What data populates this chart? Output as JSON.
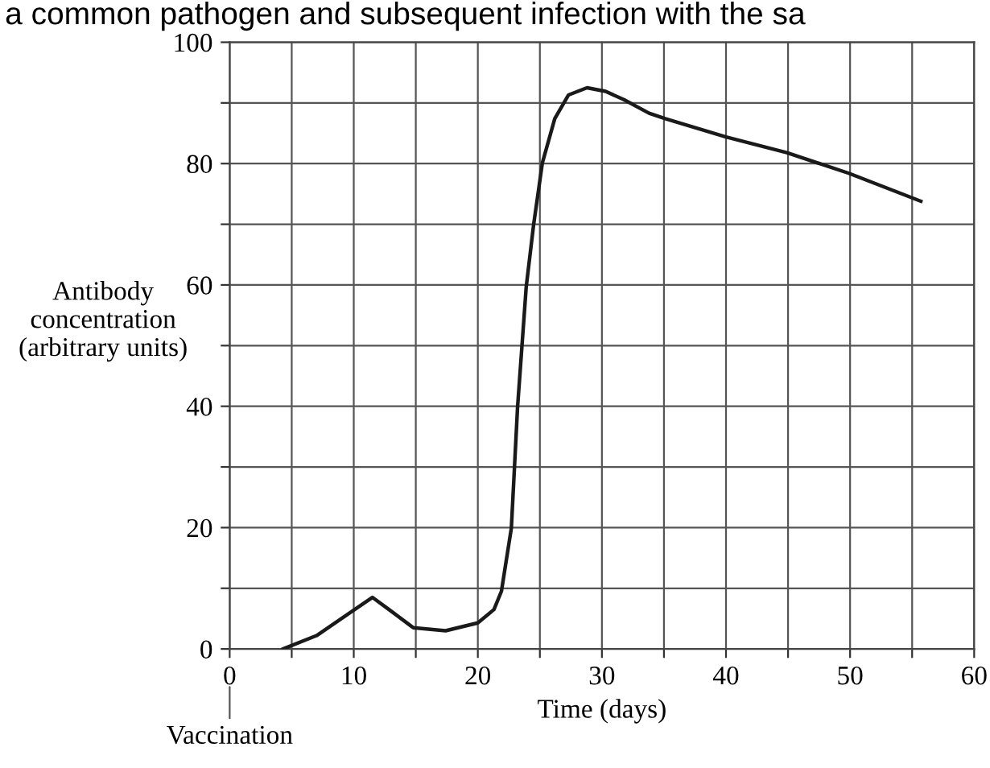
{
  "chart_data": {
    "type": "line",
    "title": "a common pathogen and subsequent infection with the sa",
    "xlabel": "Time (days)",
    "ylabel": "Antibody\nconcentration\n(arbitrary units)",
    "series": [
      {
        "color": "#1a1a1a",
        "x": [
          4.3,
          7.0,
          11.5,
          13.1,
          14.8,
          17.4,
          20.0,
          21.3,
          21.9,
          22.7,
          23.2,
          23.9,
          24.5,
          25.2,
          26.2,
          27.3,
          28.8,
          30.3,
          31.8,
          33.8,
          35.1,
          40,
          44.9,
          49.9,
          55.7
        ],
        "values": [
          0,
          2.2,
          8.5,
          6.1,
          3.5,
          3.0,
          4.3,
          6.5,
          9.5,
          19.9,
          39.8,
          59.7,
          70,
          80.1,
          87.4,
          91.3,
          92.5,
          91.9,
          90.5,
          88.3,
          87.4,
          84.4,
          81.8,
          78.4,
          73.8
        ]
      }
    ],
    "xlim": [
      0,
      60
    ],
    "ylim": [
      0,
      100
    ],
    "xticks": [
      0,
      {
        "value": 5,
        "label": null
      },
      10,
      {
        "value": 15,
        "label": null
      },
      20,
      {
        "value": 25,
        "label": null
      },
      30,
      {
        "value": 35,
        "label": null
      },
      40,
      {
        "value": 45,
        "label": null
      },
      50,
      {
        "value": 55,
        "label": null
      },
      60
    ],
    "yticks": [
      0,
      {
        "value": 10,
        "label": null
      },
      20,
      {
        "value": 30,
        "label": null
      },
      40,
      {
        "value": 50,
        "label": null
      },
      60,
      {
        "value": 70,
        "label": null
      },
      80,
      {
        "value": 90,
        "label": null
      },
      100
    ],
    "grid": true,
    "line_style": "solid",
    "marker": "none",
    "annotations": [
      "Vaccination"
    ]
  }
}
